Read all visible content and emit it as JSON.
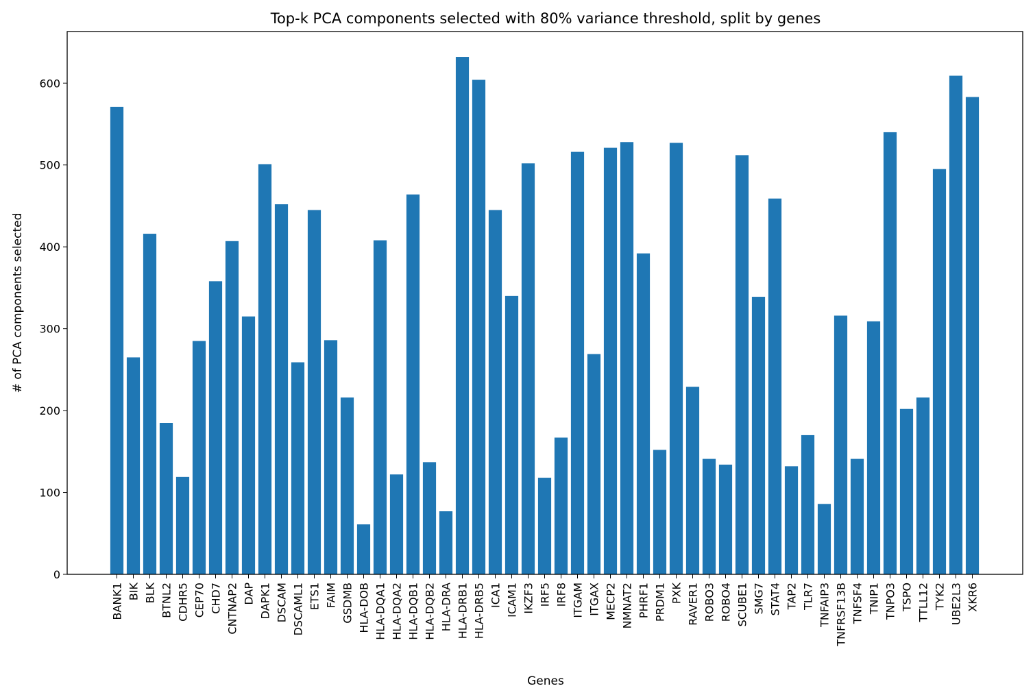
{
  "chart_data": {
    "type": "bar",
    "title": "Top-k PCA components selected with 80% variance threshold, split by genes",
    "xlabel": "Genes",
    "ylabel": "# of PCA components selected",
    "ylim": [
      0,
      663
    ],
    "yticks": [
      0,
      100,
      200,
      300,
      400,
      500,
      600
    ],
    "bar_color": "#1f77b4",
    "grid": false,
    "categories": [
      "BANK1",
      "BIK",
      "BLK",
      "BTNL2",
      "CDHR5",
      "CEP70",
      "CHD7",
      "CNTNAP2",
      "DAP",
      "DAPK1",
      "DSCAM",
      "DSCAML1",
      "ETS1",
      "FAIM",
      "GSDMB",
      "HLA-DOB",
      "HLA-DQA1",
      "HLA-DQA2",
      "HLA-DQB1",
      "HLA-DQB2",
      "HLA-DRA",
      "HLA-DRB1",
      "HLA-DRB5",
      "ICA1",
      "ICAM1",
      "IKZF3",
      "IRF5",
      "IRF8",
      "ITGAM",
      "ITGAX",
      "MECP2",
      "NMNAT2",
      "PHRF1",
      "PRDM1",
      "PXK",
      "RAVER1",
      "ROBO3",
      "ROBO4",
      "SCUBE1",
      "SMG7",
      "STAT4",
      "TAP2",
      "TLR7",
      "TNFAIP3",
      "TNFRSF13B",
      "TNFSF4",
      "TNIP1",
      "TNPO3",
      "TSPO",
      "TTLL12",
      "TYK2",
      "UBE2L3",
      "XKR6"
    ],
    "values": [
      571,
      265,
      416,
      185,
      119,
      285,
      358,
      407,
      315,
      501,
      452,
      259,
      445,
      286,
      216,
      61,
      408,
      122,
      464,
      137,
      77,
      632,
      604,
      445,
      340,
      502,
      118,
      167,
      516,
      269,
      521,
      528,
      392,
      152,
      527,
      229,
      141,
      134,
      512,
      339,
      459,
      132,
      170,
      86,
      316,
      141,
      309,
      540,
      202,
      216,
      495,
      609,
      583
    ]
  }
}
